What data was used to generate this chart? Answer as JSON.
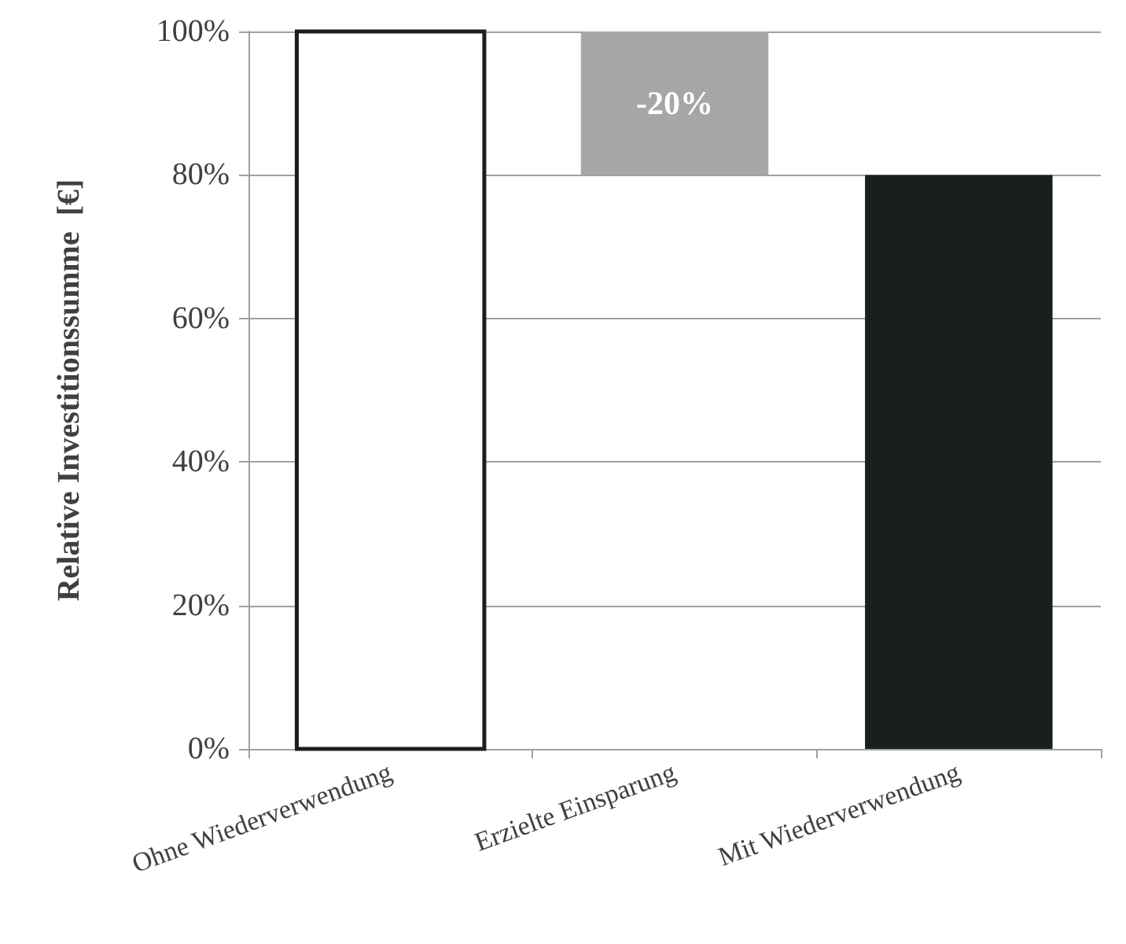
{
  "chart_data": {
    "type": "bar",
    "ylabel": "Relative Investitionssumme  [€]",
    "categories": [
      "Ohne Wiederverwendung",
      "Erzielte Einsparung",
      "Mit Wiederverwendung"
    ],
    "values": [
      100,
      -20,
      80
    ],
    "base": [
      0,
      100,
      0
    ],
    "colors": [
      "#ffffff",
      "#a6a6a6",
      "#1a1e1e"
    ],
    "value_labels": [
      null,
      "-20%",
      null
    ],
    "ylim": [
      0,
      100
    ],
    "yticks": [
      {
        "value": 0,
        "label": "0%"
      },
      {
        "value": 20,
        "label": "20%"
      },
      {
        "value": 40,
        "label": "40%"
      },
      {
        "value": 60,
        "label": "60%"
      },
      {
        "value": 80,
        "label": "80%"
      },
      {
        "value": 100,
        "label": "100%"
      }
    ],
    "grid": "y"
  }
}
